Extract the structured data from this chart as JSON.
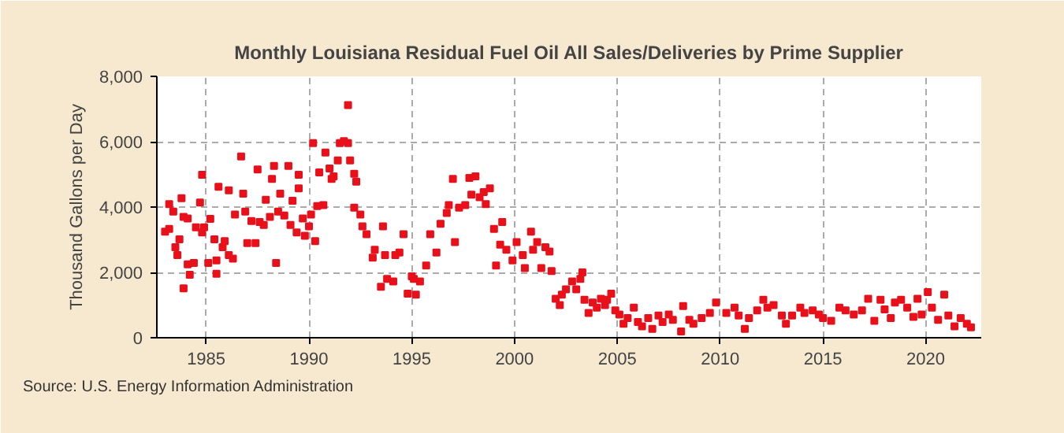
{
  "chart_data": {
    "type": "scatter",
    "title": "Monthly Louisiana Residual Fuel Oil All Sales/Deliveries by Prime Supplier",
    "ylabel": "Thousand Gallons per Day",
    "marker": "square",
    "grid": true,
    "annotations": [
      "Source: U.S. Energy Information Administration"
    ],
    "xlim": [
      1982.6,
      2022.7
    ],
    "xticks": [
      1985,
      1990,
      1995,
      2000,
      2005,
      2010,
      2015,
      2020
    ],
    "ylim": [
      0,
      8000
    ],
    "yticks": [
      0,
      {
        "value": 2000,
        "label": "2,000"
      },
      {
        "value": 4000,
        "label": "4,000"
      },
      {
        "value": 6000,
        "label": "6,000"
      },
      {
        "value": 8000,
        "label": "8,000"
      }
    ],
    "series": [
      {
        "color": "#e8101a",
        "x": [
          1983.0,
          1983.2,
          1983.2,
          1983.4,
          1983.5,
          1983.6,
          1983.7,
          1983.8,
          1983.9,
          1983.9,
          1984.1,
          1984.1,
          1984.2,
          1984.4,
          1984.5,
          1984.7,
          1984.8,
          1984.8,
          1984.9,
          1985.1,
          1985.2,
          1985.4,
          1985.5,
          1985.5,
          1985.6,
          1985.8,
          1985.9,
          1986.1,
          1986.1,
          1986.3,
          1986.4,
          1986.7,
          1986.8,
          1986.9,
          1987.0,
          1987.2,
          1987.4,
          1987.5,
          1987.6,
          1987.8,
          1987.9,
          1988.1,
          1988.2,
          1988.3,
          1988.4,
          1988.5,
          1988.6,
          1988.8,
          1989.0,
          1989.1,
          1989.2,
          1989.4,
          1989.5,
          1989.5,
          1989.7,
          1989.8,
          1990.0,
          1990.1,
          1990.2,
          1990.3,
          1990.4,
          1990.5,
          1990.7,
          1990.8,
          1991.0,
          1991.1,
          1991.2,
          1991.4,
          1991.5,
          1991.7,
          1991.9,
          1991.9,
          1992.0,
          1992.2,
          1992.2,
          1992.3,
          1992.5,
          1992.6,
          1992.8,
          1993.1,
          1993.2,
          1993.5,
          1993.6,
          1993.7,
          1993.8,
          1994.1,
          1994.2,
          1994.4,
          1994.6,
          1994.8,
          1995.0,
          1995.1,
          1995.2,
          1995.4,
          1995.7,
          1995.9,
          1996.2,
          1996.4,
          1996.7,
          1996.8,
          1997.0,
          1997.1,
          1997.3,
          1997.6,
          1997.8,
          1997.9,
          1998.1,
          1998.3,
          1998.5,
          1998.6,
          1998.8,
          1999.0,
          1999.1,
          1999.3,
          1999.4,
          1999.6,
          1999.9,
          2000.1,
          2000.4,
          2000.5,
          2000.8,
          2000.9,
          2001.1,
          2001.3,
          2001.5,
          2001.7,
          2001.8,
          2002.0,
          2002.2,
          2002.3,
          2002.5,
          2002.8,
          2003.0,
          2003.2,
          2003.3,
          2003.4,
          2003.6,
          2003.8,
          2004.0,
          2004.2,
          2004.4,
          2004.5,
          2004.7,
          2004.9,
          2005.1,
          2005.3,
          2005.5,
          2005.8,
          2006.0,
          2006.2,
          2006.5,
          2006.7,
          2007.0,
          2007.2,
          2007.5,
          2007.7,
          2008.1,
          2008.2,
          2008.5,
          2008.7,
          2009.1,
          2009.5,
          2009.8,
          2010.3,
          2010.7,
          2010.9,
          2011.2,
          2011.4,
          2011.8,
          2012.1,
          2012.3,
          2012.6,
          2013.0,
          2013.2,
          2013.5,
          2013.9,
          2014.1,
          2014.5,
          2014.8,
          2015.0,
          2015.4,
          2015.8,
          2016.1,
          2016.5,
          2016.9,
          2017.2,
          2017.5,
          2017.8,
          2018.0,
          2018.3,
          2018.5,
          2018.8,
          2019.1,
          2019.4,
          2019.6,
          2019.8,
          2020.1,
          2020.3,
          2020.6,
          2020.9,
          2021.1,
          2021.4,
          2021.7,
          2022.0,
          2022.2
        ],
        "values": [
          3250,
          4090,
          3330,
          3860,
          2770,
          2530,
          3010,
          4270,
          3700,
          1510,
          3650,
          2250,
          1930,
          2290,
          3380,
          4140,
          4990,
          3220,
          3380,
          2290,
          3640,
          3010,
          2370,
          1960,
          4620,
          2770,
          2960,
          4510,
          2530,
          2420,
          3770,
          5550,
          4410,
          3860,
          2900,
          3570,
          2900,
          5150,
          3540,
          3450,
          4220,
          3700,
          4860,
          5260,
          2290,
          3860,
          4410,
          3740,
          5260,
          3450,
          4190,
          3220,
          4570,
          4990,
          3650,
          3120,
          3410,
          3770,
          5960,
          2960,
          4030,
          5060,
          4060,
          5670,
          5180,
          4860,
          4940,
          5430,
          5960,
          6020,
          7120,
          5960,
          5430,
          5020,
          3980,
          4780,
          3770,
          3410,
          3170,
          2450,
          2690,
          1560,
          3410,
          2530,
          1800,
          1720,
          2530,
          2610,
          3170,
          1350,
          1880,
          1800,
          1320,
          1720,
          2210,
          3170,
          2610,
          3490,
          3820,
          4060,
          4860,
          2930,
          3980,
          4060,
          4890,
          4380,
          4940,
          4300,
          4460,
          4090,
          4570,
          3330,
          2210,
          2850,
          3540,
          2690,
          2370,
          2930,
          2530,
          2130,
          3250,
          2690,
          2930,
          2130,
          2770,
          2640,
          2040,
          1190,
          1000,
          1320,
          1480,
          1720,
          1480,
          1800,
          2000,
          1160,
          760,
          1080,
          920,
          1190,
          1000,
          1160,
          1350,
          840,
          710,
          430,
          600,
          920,
          480,
          350,
          600,
          270,
          680,
          480,
          710,
          550,
          190,
          970,
          550,
          430,
          600,
          760,
          1080,
          760,
          920,
          680,
          270,
          600,
          840,
          1160,
          920,
          1000,
          680,
          430,
          680,
          920,
          760,
          840,
          710,
          600,
          520,
          920,
          840,
          710,
          840,
          1190,
          520,
          1160,
          870,
          600,
          1080,
          1160,
          920,
          640,
          1190,
          710,
          1400,
          920,
          550,
          1320,
          680,
          350,
          600,
          430,
          320
        ]
      }
    ]
  }
}
